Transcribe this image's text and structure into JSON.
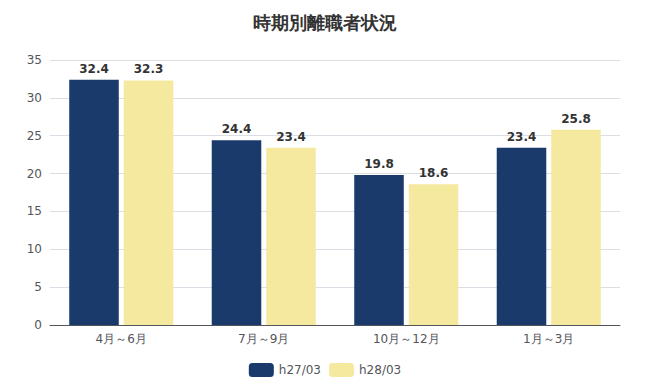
{
  "chart_data": {
    "type": "bar",
    "title": "時期別離職者状況",
    "categories": [
      "4月～6月",
      "7月～9月",
      "10月～12月",
      "1月～3月"
    ],
    "series": [
      {
        "name": "h27/03",
        "color": "#1a3a6b",
        "values": [
          32.4,
          24.4,
          19.8,
          23.4
        ]
      },
      {
        "name": "h28/03",
        "color": "#f5e9a0",
        "values": [
          32.3,
          23.4,
          18.6,
          25.8
        ]
      }
    ],
    "ylim": [
      0,
      35
    ],
    "yticks": [
      0,
      5,
      10,
      15,
      20,
      25,
      30,
      35
    ],
    "grid": true,
    "legend": "bottom",
    "data_labels": true
  }
}
